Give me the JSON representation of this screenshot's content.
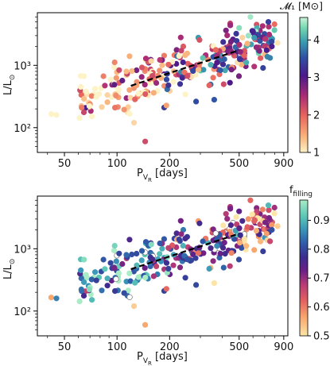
{
  "panels": [
    {
      "xlabel_main": "P",
      "xlabel_sub": "V",
      "xlabel_subsub": "R",
      "xlabel_tail": " [days]",
      "ylabel_main": "L/L",
      "ylabel_sub": "⊙",
      "colorbar_title": "𝓜₁ [M⊙]",
      "colorbar_ticks": [
        "1",
        "2",
        "3",
        "4"
      ]
    },
    {
      "xlabel_main": "P",
      "xlabel_sub": "V",
      "xlabel_subsub": "R",
      "xlabel_tail": " [days]",
      "ylabel_main": "L/L",
      "ylabel_sub": "⊙",
      "colorbar_title": "f",
      "colorbar_title_sub": "filling",
      "colorbar_ticks": [
        "0.5",
        "0.6",
        "0.7",
        "0.8",
        "0.9"
      ]
    }
  ],
  "chart_data": [
    {
      "type": "scatter",
      "xscale": "log",
      "yscale": "log",
      "xlim": [
        35,
        950
      ],
      "ylim": [
        40,
        7000
      ],
      "x_ticks": [
        "50",
        "100",
        "200",
        "500",
        "900"
      ],
      "y_ticks": [
        "10²",
        "10³"
      ],
      "x_tick_values": [
        50,
        100,
        200,
        500,
        900
      ],
      "y_tick_values": [
        100,
        1000
      ],
      "color_by": "M1",
      "clim": [
        1,
        4.6
      ],
      "colormap": [
        "#fdf3c6",
        "#f9b27a",
        "#e8665e",
        "#a82b76",
        "#4a1a8a",
        "#2f4fa3",
        "#3a9bb0",
        "#72d6b0",
        "#c9f5d8"
      ],
      "fit_line": {
        "x": [
          120,
          500
        ],
        "y": [
          470,
          1750
        ],
        "style": "dashed"
      },
      "legend": "colorbar-right"
    },
    {
      "type": "scatter",
      "xscale": "log",
      "yscale": "log",
      "xlim": [
        35,
        950
      ],
      "ylim": [
        40,
        7000
      ],
      "x_ticks": [
        "50",
        "100",
        "200",
        "500",
        "900"
      ],
      "y_ticks": [
        "10²",
        "10³"
      ],
      "x_tick_values": [
        50,
        100,
        200,
        500,
        900
      ],
      "y_tick_values": [
        100,
        1000
      ],
      "color_by": "f_filling",
      "clim": [
        0.5,
        0.97
      ],
      "colormap": [
        "#fde6a8",
        "#f7a56c",
        "#e26060",
        "#b53a76",
        "#6a1f86",
        "#3b2d8f",
        "#2f5aa8",
        "#3a93b8",
        "#5bc6b6",
        "#a9ecc6"
      ],
      "fit_line": {
        "x": [
          120,
          500
        ],
        "y": [
          470,
          1750
        ],
        "style": "dashed"
      },
      "legend": "colorbar-right"
    }
  ]
}
